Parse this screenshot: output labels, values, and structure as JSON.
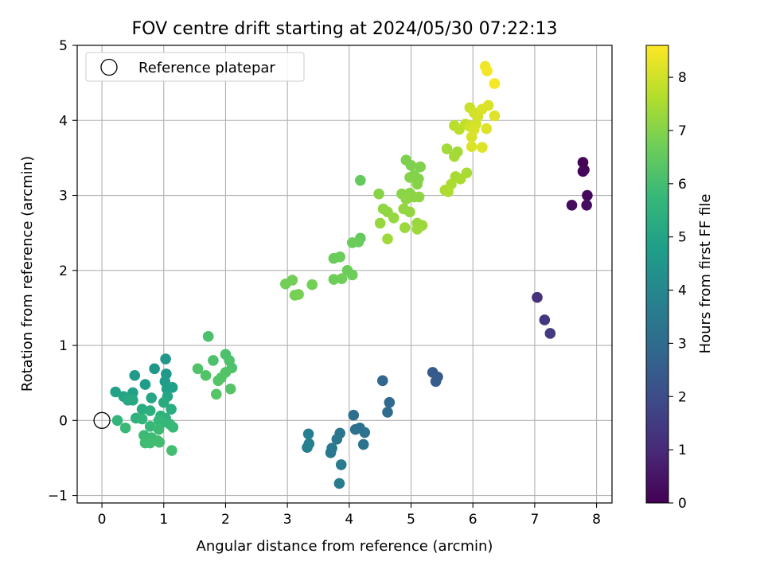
{
  "chart_data": {
    "type": "scatter",
    "title": "FOV centre drift starting at 2024/05/30 07:22:13",
    "xlabel": "Angular distance from reference (arcmin)",
    "ylabel": "Rotation from reference (arcmin)",
    "xlim": [
      -0.4,
      8.25
    ],
    "ylim": [
      -1.1,
      5.0
    ],
    "xticks": [
      "0",
      "1",
      "2",
      "3",
      "4",
      "5",
      "6",
      "7",
      "8"
    ],
    "yticks": [
      "−1",
      "0",
      "1",
      "2",
      "3",
      "4",
      "5"
    ],
    "grid": true,
    "legend": {
      "placement": "top-left",
      "entries": [
        "Reference platepar"
      ]
    },
    "reference_point": {
      "x": 0,
      "y": 0,
      "label": "Reference platepar"
    },
    "colorbar": {
      "label": "Hours from first FF file",
      "colormap": "viridis",
      "range": [
        0,
        8.6
      ],
      "ticks": [
        "0",
        "1",
        "2",
        "3",
        "4",
        "5",
        "6",
        "7",
        "8"
      ]
    },
    "points": [
      {
        "x": 7.78,
        "y": 3.44,
        "t": 0.05
      },
      {
        "x": 7.78,
        "y": 3.32,
        "t": 0.1
      },
      {
        "x": 7.8,
        "y": 3.34,
        "t": 0.15
      },
      {
        "x": 7.85,
        "y": 3.0,
        "t": 0.2
      },
      {
        "x": 7.6,
        "y": 2.87,
        "t": 0.25
      },
      {
        "x": 7.84,
        "y": 2.87,
        "t": 0.3
      },
      {
        "x": 7.04,
        "y": 1.64,
        "t": 1.2
      },
      {
        "x": 7.16,
        "y": 1.34,
        "t": 1.35
      },
      {
        "x": 7.25,
        "y": 1.16,
        "t": 1.45
      },
      {
        "x": 5.35,
        "y": 0.64,
        "t": 2.4
      },
      {
        "x": 5.43,
        "y": 0.58,
        "t": 2.45
      },
      {
        "x": 5.4,
        "y": 0.52,
        "t": 2.5
      },
      {
        "x": 4.54,
        "y": 0.53,
        "t": 2.85
      },
      {
        "x": 4.65,
        "y": 0.24,
        "t": 2.95
      },
      {
        "x": 4.62,
        "y": 0.11,
        "t": 3.0
      },
      {
        "x": 4.07,
        "y": 0.07,
        "t": 3.1
      },
      {
        "x": 4.1,
        "y": -0.12,
        "t": 3.15
      },
      {
        "x": 4.17,
        "y": -0.1,
        "t": 3.2
      },
      {
        "x": 4.25,
        "y": -0.16,
        "t": 3.25
      },
      {
        "x": 4.23,
        "y": -0.32,
        "t": 3.3
      },
      {
        "x": 3.85,
        "y": -0.17,
        "t": 3.35
      },
      {
        "x": 3.8,
        "y": -0.25,
        "t": 3.4
      },
      {
        "x": 3.72,
        "y": -0.37,
        "t": 3.45
      },
      {
        "x": 3.7,
        "y": -0.43,
        "t": 3.5
      },
      {
        "x": 3.87,
        "y": -0.59,
        "t": 3.55
      },
      {
        "x": 3.84,
        "y": -0.84,
        "t": 3.6
      },
      {
        "x": 3.34,
        "y": -0.18,
        "t": 3.65
      },
      {
        "x": 3.35,
        "y": -0.31,
        "t": 3.7
      },
      {
        "x": 3.32,
        "y": -0.36,
        "t": 3.75
      },
      {
        "x": 1.03,
        "y": 0.82,
        "t": 4.5
      },
      {
        "x": 0.85,
        "y": 0.69,
        "t": 4.55
      },
      {
        "x": 1.04,
        "y": 0.62,
        "t": 4.6
      },
      {
        "x": 0.53,
        "y": 0.6,
        "t": 4.65
      },
      {
        "x": 1.02,
        "y": 0.52,
        "t": 4.7
      },
      {
        "x": 0.7,
        "y": 0.48,
        "t": 4.75
      },
      {
        "x": 1.14,
        "y": 0.44,
        "t": 4.8
      },
      {
        "x": 1.05,
        "y": 0.42,
        "t": 4.85
      },
      {
        "x": 0.22,
        "y": 0.38,
        "t": 4.9
      },
      {
        "x": 0.5,
        "y": 0.37,
        "t": 4.95
      },
      {
        "x": 0.35,
        "y": 0.32,
        "t": 5.0
      },
      {
        "x": 1.06,
        "y": 0.32,
        "t": 5.05
      },
      {
        "x": 0.8,
        "y": 0.3,
        "t": 5.1
      },
      {
        "x": 0.42,
        "y": 0.27,
        "t": 5.15
      },
      {
        "x": 0.5,
        "y": 0.27,
        "t": 5.2
      },
      {
        "x": 1.0,
        "y": 0.24,
        "t": 5.25
      },
      {
        "x": 0.65,
        "y": 0.15,
        "t": 5.3
      },
      {
        "x": 1.12,
        "y": 0.15,
        "t": 5.35
      },
      {
        "x": 0.78,
        "y": 0.13,
        "t": 5.4
      },
      {
        "x": 0.95,
        "y": 0.06,
        "t": 5.45
      },
      {
        "x": 0.55,
        "y": 0.03,
        "t": 5.5
      },
      {
        "x": 1.03,
        "y": 0.03,
        "t": 5.55
      },
      {
        "x": 0.65,
        "y": 0.02,
        "t": 5.6
      },
      {
        "x": 0.25,
        "y": 0.0,
        "t": 5.65
      },
      {
        "x": 0.92,
        "y": 0.0,
        "t": 5.7
      },
      {
        "x": 0.97,
        "y": -0.03,
        "t": 5.72
      },
      {
        "x": 1.1,
        "y": -0.05,
        "t": 5.75
      },
      {
        "x": 0.78,
        "y": -0.08,
        "t": 5.78
      },
      {
        "x": 1.15,
        "y": -0.09,
        "t": 5.8
      },
      {
        "x": 0.38,
        "y": -0.1,
        "t": 5.82
      },
      {
        "x": 0.92,
        "y": -0.12,
        "t": 5.84
      },
      {
        "x": 0.68,
        "y": -0.2,
        "t": 5.86
      },
      {
        "x": 0.8,
        "y": -0.23,
        "t": 5.88
      },
      {
        "x": 0.9,
        "y": -0.27,
        "t": 5.9
      },
      {
        "x": 0.7,
        "y": -0.3,
        "t": 5.92
      },
      {
        "x": 0.78,
        "y": -0.3,
        "t": 5.94
      },
      {
        "x": 0.93,
        "y": -0.29,
        "t": 5.96
      },
      {
        "x": 1.13,
        "y": -0.4,
        "t": 5.98
      },
      {
        "x": 1.72,
        "y": 1.12,
        "t": 6.1
      },
      {
        "x": 2.0,
        "y": 0.88,
        "t": 6.12
      },
      {
        "x": 1.8,
        "y": 0.8,
        "t": 6.14
      },
      {
        "x": 2.06,
        "y": 0.8,
        "t": 6.16
      },
      {
        "x": 2.1,
        "y": 0.7,
        "t": 6.18
      },
      {
        "x": 1.55,
        "y": 0.69,
        "t": 6.2
      },
      {
        "x": 2.0,
        "y": 0.64,
        "t": 6.22
      },
      {
        "x": 1.68,
        "y": 0.6,
        "t": 6.24
      },
      {
        "x": 1.93,
        "y": 0.57,
        "t": 6.26
      },
      {
        "x": 1.88,
        "y": 0.53,
        "t": 6.28
      },
      {
        "x": 2.08,
        "y": 0.42,
        "t": 6.3
      },
      {
        "x": 1.85,
        "y": 0.35,
        "t": 6.32
      },
      {
        "x": 4.18,
        "y": 3.2,
        "t": 6.55
      },
      {
        "x": 4.18,
        "y": 2.43,
        "t": 6.5
      },
      {
        "x": 4.15,
        "y": 2.38,
        "t": 6.6
      },
      {
        "x": 4.05,
        "y": 2.37,
        "t": 6.65
      },
      {
        "x": 3.75,
        "y": 2.16,
        "t": 6.62
      },
      {
        "x": 3.85,
        "y": 2.18,
        "t": 6.64
      },
      {
        "x": 3.97,
        "y": 2.0,
        "t": 6.66
      },
      {
        "x": 4.05,
        "y": 1.94,
        "t": 6.68
      },
      {
        "x": 3.75,
        "y": 1.88,
        "t": 6.7
      },
      {
        "x": 3.88,
        "y": 1.89,
        "t": 6.72
      },
      {
        "x": 2.97,
        "y": 1.82,
        "t": 6.74
      },
      {
        "x": 3.08,
        "y": 1.87,
        "t": 6.76
      },
      {
        "x": 3.4,
        "y": 1.81,
        "t": 6.78
      },
      {
        "x": 3.12,
        "y": 1.67,
        "t": 6.8
      },
      {
        "x": 3.18,
        "y": 1.68,
        "t": 6.82
      },
      {
        "x": 4.92,
        "y": 3.47,
        "t": 6.9
      },
      {
        "x": 5.0,
        "y": 3.4,
        "t": 6.92
      },
      {
        "x": 5.15,
        "y": 3.38,
        "t": 6.94
      },
      {
        "x": 5.05,
        "y": 3.27,
        "t": 6.96
      },
      {
        "x": 5.12,
        "y": 3.22,
        "t": 6.98
      },
      {
        "x": 4.98,
        "y": 3.24,
        "t": 7.0
      },
      {
        "x": 5.1,
        "y": 3.15,
        "t": 7.02
      },
      {
        "x": 4.48,
        "y": 3.02,
        "t": 7.04
      },
      {
        "x": 4.85,
        "y": 3.02,
        "t": 7.06
      },
      {
        "x": 4.98,
        "y": 3.03,
        "t": 7.08
      },
      {
        "x": 5.05,
        "y": 2.98,
        "t": 7.1
      },
      {
        "x": 5.13,
        "y": 2.98,
        "t": 7.12
      },
      {
        "x": 4.92,
        "y": 2.95,
        "t": 7.14
      },
      {
        "x": 4.55,
        "y": 2.82,
        "t": 7.16
      },
      {
        "x": 4.62,
        "y": 2.78,
        "t": 7.18
      },
      {
        "x": 4.88,
        "y": 2.82,
        "t": 7.2
      },
      {
        "x": 4.98,
        "y": 2.78,
        "t": 7.22
      },
      {
        "x": 4.72,
        "y": 2.7,
        "t": 7.24
      },
      {
        "x": 4.5,
        "y": 2.63,
        "t": 7.26
      },
      {
        "x": 5.1,
        "y": 2.63,
        "t": 7.28
      },
      {
        "x": 4.9,
        "y": 2.57,
        "t": 7.3
      },
      {
        "x": 5.18,
        "y": 2.6,
        "t": 7.32
      },
      {
        "x": 5.1,
        "y": 2.55,
        "t": 7.34
      },
      {
        "x": 4.62,
        "y": 2.42,
        "t": 7.36
      },
      {
        "x": 5.58,
        "y": 3.62,
        "t": 7.4
      },
      {
        "x": 5.75,
        "y": 3.58,
        "t": 7.42
      },
      {
        "x": 5.7,
        "y": 3.52,
        "t": 7.44
      },
      {
        "x": 5.72,
        "y": 3.25,
        "t": 7.46
      },
      {
        "x": 5.9,
        "y": 3.3,
        "t": 7.48
      },
      {
        "x": 5.8,
        "y": 3.22,
        "t": 7.5
      },
      {
        "x": 5.65,
        "y": 3.15,
        "t": 7.52
      },
      {
        "x": 5.55,
        "y": 3.07,
        "t": 7.54
      },
      {
        "x": 5.6,
        "y": 3.05,
        "t": 7.56
      },
      {
        "x": 5.7,
        "y": 3.93,
        "t": 7.7
      },
      {
        "x": 5.78,
        "y": 3.88,
        "t": 7.75
      },
      {
        "x": 5.88,
        "y": 3.95,
        "t": 7.8
      },
      {
        "x": 5.95,
        "y": 4.17,
        "t": 7.9
      },
      {
        "x": 6.02,
        "y": 4.1,
        "t": 8.0
      },
      {
        "x": 6.08,
        "y": 4.05,
        "t": 8.05
      },
      {
        "x": 6.15,
        "y": 4.15,
        "t": 8.1
      },
      {
        "x": 6.25,
        "y": 4.2,
        "t": 8.15
      },
      {
        "x": 6.35,
        "y": 4.06,
        "t": 8.2
      },
      {
        "x": 5.95,
        "y": 3.92,
        "t": 8.0
      },
      {
        "x": 6.05,
        "y": 3.95,
        "t": 8.05
      },
      {
        "x": 6.02,
        "y": 3.88,
        "t": 8.1
      },
      {
        "x": 5.98,
        "y": 3.78,
        "t": 8.1
      },
      {
        "x": 6.22,
        "y": 3.89,
        "t": 8.2
      },
      {
        "x": 5.98,
        "y": 3.65,
        "t": 8.15
      },
      {
        "x": 6.15,
        "y": 3.64,
        "t": 8.2
      },
      {
        "x": 6.2,
        "y": 4.72,
        "t": 8.4
      },
      {
        "x": 6.23,
        "y": 4.66,
        "t": 8.45
      },
      {
        "x": 6.35,
        "y": 4.49,
        "t": 8.5
      }
    ]
  }
}
